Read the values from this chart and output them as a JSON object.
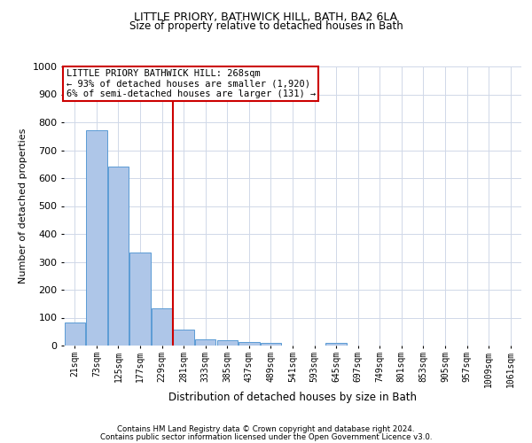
{
  "title1": "LITTLE PRIORY, BATHWICK HILL, BATH, BA2 6LA",
  "title2": "Size of property relative to detached houses in Bath",
  "xlabel": "Distribution of detached houses by size in Bath",
  "ylabel": "Number of detached properties",
  "footnote1": "Contains HM Land Registry data © Crown copyright and database right 2024.",
  "footnote2": "Contains public sector information licensed under the Open Government Licence v3.0.",
  "categories": [
    "21sqm",
    "73sqm",
    "125sqm",
    "177sqm",
    "229sqm",
    "281sqm",
    "333sqm",
    "385sqm",
    "437sqm",
    "489sqm",
    "541sqm",
    "593sqm",
    "645sqm",
    "697sqm",
    "749sqm",
    "801sqm",
    "853sqm",
    "905sqm",
    "957sqm",
    "1009sqm",
    "1061sqm"
  ],
  "values": [
    83,
    770,
    640,
    332,
    132,
    57,
    23,
    20,
    12,
    9,
    0,
    0,
    10,
    0,
    0,
    0,
    0,
    0,
    0,
    0,
    0
  ],
  "bar_color": "#aec6e8",
  "bar_edge_color": "#5b9bd5",
  "vline_x": 4.5,
  "vline_color": "#cc0000",
  "annotation_title": "LITTLE PRIORY BATHWICK HILL: 268sqm",
  "annotation_line1": "← 93% of detached houses are smaller (1,920)",
  "annotation_line2": "6% of semi-detached houses are larger (131) →",
  "annotation_box_color": "#cc0000",
  "ylim": [
    0,
    1000
  ],
  "yticks": [
    0,
    100,
    200,
    300,
    400,
    500,
    600,
    700,
    800,
    900,
    1000
  ],
  "background_color": "#ffffff",
  "grid_color": "#d0d8e8",
  "title1_fontsize": 9,
  "title2_fontsize": 8.5
}
